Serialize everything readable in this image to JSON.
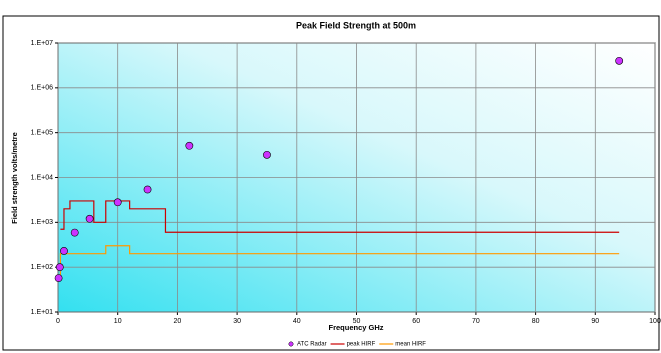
{
  "chart_data": {
    "type": "scatter-line",
    "title": "Peak Field Strength at 500m",
    "x_label": "Frequency GHz",
    "y_label": "Field strength volts/metre",
    "log_y": true,
    "grid": true,
    "legend": "bottom",
    "xlim": [
      0,
      100
    ],
    "xticks": [
      0,
      10,
      20,
      30,
      40,
      50,
      60,
      70,
      80,
      90,
      100
    ],
    "ylim": [
      10,
      10000000
    ],
    "yticks": [
      {
        "value": 10,
        "label": "1.E+01"
      },
      {
        "value": 100,
        "label": "1.E+02"
      },
      {
        "value": 1000,
        "label": "1.E+03"
      },
      {
        "value": 10000,
        "label": "1.E+04"
      },
      {
        "value": 100000,
        "label": "1.E+05"
      },
      {
        "value": 1000000,
        "label": "1.E+06"
      },
      {
        "value": 10000000,
        "label": "1.E+07"
      }
    ],
    "series": [
      {
        "name": "ATC Radar",
        "kind": "scatter",
        "color": "#cc33ff",
        "x": [
          0.1,
          0.3,
          1,
          2.8,
          5.3,
          10,
          15,
          22,
          35,
          94
        ],
        "values": [
          57,
          100,
          230,
          590,
          1200,
          2800,
          5400,
          51000,
          32000,
          4000000
        ]
      },
      {
        "name": "peak HIRF",
        "kind": "line",
        "color": "#cc0000",
        "x": [
          0.4,
          1,
          1,
          2,
          2,
          6,
          6,
          8,
          8,
          12,
          12,
          18,
          18,
          94
        ],
        "values": [
          700,
          700,
          2000,
          2000,
          3000,
          3000,
          1000,
          1000,
          3000,
          3000,
          2000,
          2000,
          600,
          600
        ]
      },
      {
        "name": "mean HIRF",
        "kind": "line",
        "color": "#ff9900",
        "x": [
          0.4,
          0.4,
          8,
          8,
          12,
          12,
          94
        ],
        "values": [
          60,
          200,
          200,
          300,
          300,
          200,
          200
        ]
      }
    ]
  }
}
